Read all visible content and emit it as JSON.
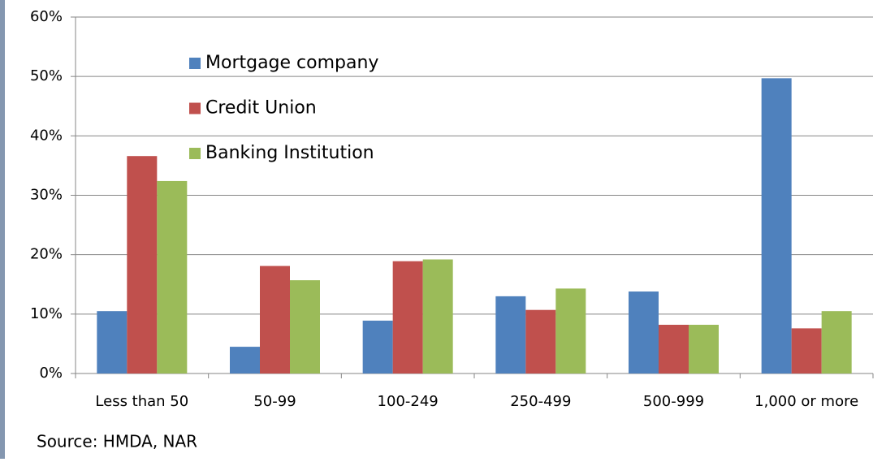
{
  "chart_data": {
    "type": "bar",
    "categories": [
      "Less than 50",
      "50-99",
      "100-249",
      "250-499",
      "500-999",
      "1,000 or more"
    ],
    "series": [
      {
        "name": "Mortgage company",
        "color": "#4f81bd",
        "values": [
          10.5,
          4.5,
          8.9,
          13.0,
          13.8,
          49.7
        ]
      },
      {
        "name": "Credit Union",
        "color": "#c0504d",
        "values": [
          36.6,
          18.1,
          18.9,
          10.7,
          8.2,
          7.6
        ]
      },
      {
        "name": "Banking Institution",
        "color": "#9bbb59",
        "values": [
          32.4,
          15.7,
          19.2,
          14.3,
          8.2,
          10.5
        ]
      }
    ],
    "ylim": [
      0,
      60
    ],
    "yticks": [
      {
        "value": 0,
        "label": "0%"
      },
      {
        "value": 10,
        "label": "10%"
      },
      {
        "value": 20,
        "label": "20%"
      },
      {
        "value": 30,
        "label": "30%"
      },
      {
        "value": 40,
        "label": "40%"
      },
      {
        "value": 50,
        "label": "50%"
      },
      {
        "value": 60,
        "label": "60%"
      }
    ],
    "grid": true,
    "legend": "upper left",
    "source": "Source: HMDA, NAR"
  }
}
